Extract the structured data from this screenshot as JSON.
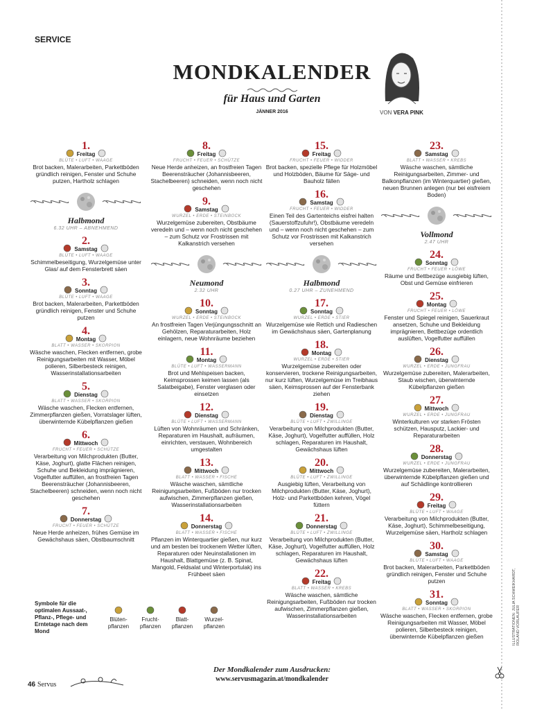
{
  "header": {
    "section": "SERVICE",
    "title": "MONDKALENDER",
    "subtitle": "für Haus und Garten",
    "month": "JÄNNER 2016",
    "author_prefix": "VON",
    "author": "VERA PINK"
  },
  "columns": [
    [
      {
        "num": "1.",
        "weekday": "Freitag",
        "tags": "BLÜTE • LUFT • WAAGE",
        "text": "Brot backen, Malerarbeiten, Parkettböden gründlich reinigen, Fenster und Schuhe putzen, Hartholz schlagen"
      },
      {
        "phase": "Halbmond",
        "time": "6.32 UHR – ABNEHMEND"
      },
      {
        "num": "2.",
        "weekday": "Samstag",
        "tags": "BLÜTE • LUFT • WAAGE",
        "text": "Schimmelbeseitigung, Wurzelgemüse unter Glas/ auf dem Fensterbrett säen"
      },
      {
        "num": "3.",
        "weekday": "Sonntag",
        "tags": "BLÜTE • LUFT • WAAGE",
        "text": "Brot backen, Malerarbeiten, Parkettböden gründlich reinigen, Fenster und Schuhe putzen"
      },
      {
        "num": "4.",
        "weekday": "Montag",
        "tags": "BLATT • WASSER • SKORPION",
        "text": "Wäsche waschen, Flecken entfernen, grobe Reinigungsarbeiten mit Wasser, Möbel polieren, Silberbesteck reinigen, Wasserinstallationsarbeiten"
      },
      {
        "num": "5.",
        "weekday": "Dienstag",
        "tags": "BLATT • WASSER • SKORPION",
        "text": "Wäsche waschen, Flecken entfernen, Zimmerpflanzen gießen, Vorratslager lüften, überwinternde Kübelpflanzen gießen"
      },
      {
        "num": "6.",
        "weekday": "Mittwoch",
        "tags": "FRUCHT • FEUER • SCHÜTZE",
        "text": "Verarbeitung von Milchprodukten (Butter, Käse, Joghurt), glatte Flächen reinigen, Schuhe und Bekleidung imprägnieren, Vogelfutter auffüllen, an frostfreien Tagen Beerensträucher (Johannisbeeren, Stachelbeeren) schneiden, wenn noch nicht geschehen"
      },
      {
        "num": "7.",
        "weekday": "Donnerstag",
        "tags": "FRUCHT • FEUER • SCHÜTZE",
        "text": "Neue Herde anheizen, frühes Gemüse im Gewächshaus säen, Obstbaumschnitt"
      }
    ],
    [
      {
        "num": "8.",
        "weekday": "Freitag",
        "tags": "FRUCHT • FEUER • SCHÜTZE",
        "text": "Neue Herde anheizen, an frostfreien Tagen Beerensträucher (Johannisbeeren, Stachelbeeren) schneiden, wenn noch nicht geschehen"
      },
      {
        "num": "9.",
        "weekday": "Samstag",
        "tags": "WURZEL • ERDE • STEINBOCK",
        "text": "Wurzelgemüse zubereiten, Obstbäume veredeln und – wenn noch nicht geschehen – zum Schutz vor Frostrissen mit Kalkanstrich versehen"
      },
      {
        "phase": "Neumond",
        "time": "2.32 UHR"
      },
      {
        "num": "10.",
        "weekday": "Sonntag",
        "tags": "WURZEL • ERDE • STEINBOCK",
        "text": "An frostfreien Tagen Verjüngungsschnitt an Gehölzen, Reparaturarbeiten, Holz einlagern, neue Wohnräume beziehen"
      },
      {
        "num": "11.",
        "weekday": "Montag",
        "tags": "BLÜTE • LUFT • WASSERMANN",
        "text": "Brot und Mehlspeisen backen, Keimsprossen keimen lassen (als Salatbeigabe), Fenster verglasen oder einsetzen"
      },
      {
        "num": "12.",
        "weekday": "Dienstag",
        "tags": "BLÜTE • LUFT • WASSERMANN",
        "text": "Lüften von Wohnräumen und Schränken, Reparaturen im Haushalt, aufräumen, einrichten, verstauen, Wohnbereich umgestalten"
      },
      {
        "num": "13.",
        "weekday": "Mittwoch",
        "tags": "BLATT • WASSER • FISCHE",
        "text": "Wäsche waschen, sämtliche Reinigungsarbeiten, Fußböden nur trocken aufwischen, Zimmerpflanzen gießen, Wasserinstallationsarbeiten"
      },
      {
        "num": "14.",
        "weekday": "Donnerstag",
        "tags": "BLATT • WASSER • FISCHE",
        "text": "Pflanzen im Winterquartier gießen, nur kurz und am besten bei trockenem Wetter lüften, Reparaturen oder Neuinstallationen im Haushalt, Blattgemüse (z. B. Spinat, Mangold, Feldsalat und Winterportulak) ins Frühbeet säen"
      }
    ],
    [
      {
        "num": "15.",
        "weekday": "Freitag",
        "tags": "FRUCHT • FEUER • WIDDER",
        "text": "Brot backen, spezielle Pflege für Holzmöbel und Holzböden, Bäume für Säge- und Bauholz fällen"
      },
      {
        "num": "16.",
        "weekday": "Samstag",
        "tags": "FRUCHT • FEUER • WIDDER",
        "text": "Einen Teil des Gartenteichs eisfrei halten (Sauerstoffzufuhr!), Obstbäume veredeln und – wenn noch nicht geschehen – zum Schutz vor Frostrissen mit Kalkanstrich versehen"
      },
      {
        "phase": "Halbmond",
        "time": "0.27 UHR – ZUNEHMEND"
      },
      {
        "num": "17.",
        "weekday": "Sonntag",
        "tags": "WURZEL • ERDE • STIER",
        "text": "Wurzelgemüse wie Rettich und Radieschen im Gewächshaus säen, Gartenplanung"
      },
      {
        "num": "18.",
        "weekday": "Montag",
        "tags": "WURZEL • ERDE • STIER",
        "text": "Wurzelgemüse zubereiten oder konservieren, trockene Reinigungsarbeiten, nur kurz lüften, Wurzelgemüse im Treibhaus säen, Keimsprossen auf der Fensterbank ziehen"
      },
      {
        "num": "19.",
        "weekday": "Dienstag",
        "tags": "BLÜTE • LUFT • ZWILLINGE",
        "text": "Verarbeitung von Milchprodukten (Butter, Käse, Joghurt), Vogelfutter auffüllen, Holz schlagen, Reparaturen im Haushalt, Gewächshaus lüften"
      },
      {
        "num": "20.",
        "weekday": "Mittwoch",
        "tags": "BLÜTE • LUFT • ZWILLINGE",
        "text": "Ausgiebig lüften, Verarbeitung von Milchprodukten (Butter, Käse, Joghurt), Holz- und Parkettböden kehren, Vögel füttern"
      },
      {
        "num": "21.",
        "weekday": "Donnerstag",
        "tags": "BLÜTE • LUFT • ZWILLINGE",
        "text": "Verarbeitung von Milchprodukten (Butter, Käse, Joghurt), Vogelfutter auffüllen, Holz schlagen, Reparaturen im Haushalt, Gewächshaus lüften"
      },
      {
        "num": "22.",
        "weekday": "Freitag",
        "tags": "BLATT • WASSER • KREBS",
        "text": "Wäsche waschen, sämtliche Reinigungsarbeiten, Fußböden nur trocken aufwischen, Zimmerpflanzen gießen, Wasserinstallationsarbeiten"
      }
    ],
    [
      {
        "num": "23.",
        "weekday": "Samstag",
        "tags": "BLATT • WASSER • KREBS",
        "text": "Wäsche waschen, sämtliche Reinigungsarbeiten, Zimmer- und Balkonpflanzen (im Winterquartier) gießen, neuen Brunnen anlegen (nur bei eisfreiem Boden)"
      },
      {
        "phase": "Vollmond",
        "time": "2.47 UHR"
      },
      {
        "num": "24.",
        "weekday": "Sonntag",
        "tags": "FRUCHT • FEUER • LÖWE",
        "text": "Räume und Bettbezüge ausgiebig lüften, Obst und Gemüse einfrieren"
      },
      {
        "num": "25.",
        "weekday": "Montag",
        "tags": "FRUCHT • FEUER • LÖWE",
        "text": "Fenster und Spiegel reinigen, Sauerkraut ansetzen, Schuhe und Bekleidung imprägnieren, Bettbezüge ordentlich auslüften, Vogelfutter auffüllen"
      },
      {
        "num": "26.",
        "weekday": "Dienstag",
        "tags": "WURZEL • ERDE • JUNGFRAU",
        "text": "Wurzelgemüse zubereiten, Malerarbeiten, Staub wischen, überwinternde Kübelpflanzen gießen"
      },
      {
        "num": "27.",
        "weekday": "Mittwoch",
        "tags": "WURZEL • ERDE • JUNGFRAU",
        "text": "Winterkulturen vor starken Frösten schützen, Hausputz, Lackier- und Reparaturarbeiten"
      },
      {
        "num": "28.",
        "weekday": "Donnerstag",
        "tags": "WURZEL • ERDE • JUNGFRAU",
        "text": "Wurzelgemüse zubereiten, Malerarbeiten, überwinternde Kübelpflanzen gießen und auf Schädlinge kontrollieren"
      },
      {
        "num": "29.",
        "weekday": "Freitag",
        "tags": "BLÜTE • LUFT • WAAGE",
        "text": "Verarbeitung von Milchprodukten (Butter, Käse, Joghurt), Schimmelbeseitigung, Wurzelgemüse säen, Hartholz schlagen"
      },
      {
        "num": "30.",
        "weekday": "Samstag",
        "tags": "BLÜTE • LUFT • WAAGE",
        "text": "Brot backen, Malerarbeiten, Parkettböden gründlich reinigen, Fenster und Schuhe putzen"
      },
      {
        "num": "31.",
        "weekday": "Sonntag",
        "tags": "BLATT • WASSER • SKORPION",
        "text": "Wäsche waschen, Flecken entfernen, grobe Reinigungsarbeiten mit Wasser, Möbel polieren, Silberbesteck reinigen, überwinternde Kübelpflanzen gießen"
      }
    ]
  ],
  "legend": {
    "title": "Symbole für die optimalen Aussaat-, Pflanz-, Pflege- und Erntetage nach dem Mond",
    "items": [
      [
        "Blüten-",
        "pflanzen"
      ],
      [
        "Frucht-",
        "pflanzen"
      ],
      [
        "Blatt-",
        "pflanzen"
      ],
      [
        "Wurzel-",
        "pflanzen"
      ]
    ]
  },
  "footer": {
    "headline": "Der Mondkalender zum Ausdrucken:",
    "url": "www.servusmagazin.at/mondkalender",
    "page": "46",
    "magazine": "Servus",
    "credit": "ILLUSTRATIONEN: JULIA SCHWEIKHARDT, ROLAND VORLAUFER"
  }
}
